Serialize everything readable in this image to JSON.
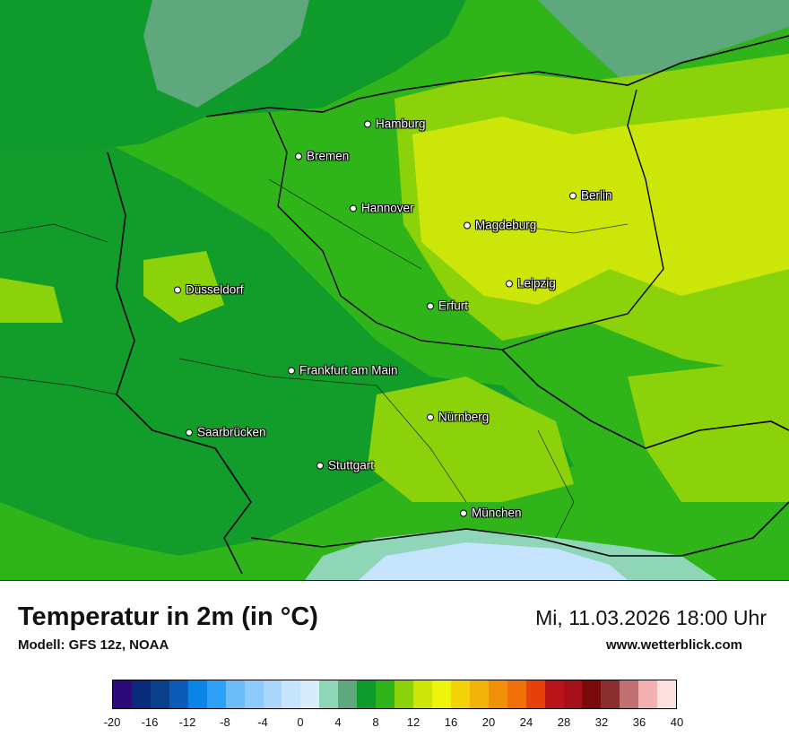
{
  "map": {
    "cities": [
      {
        "name": "Hamburg"
      },
      {
        "name": "Bremen"
      },
      {
        "name": "Hannover"
      },
      {
        "name": "Berlin"
      },
      {
        "name": "Magdeburg"
      },
      {
        "name": "Leipzig"
      },
      {
        "name": "Düsseldorf"
      },
      {
        "name": "Erfurt"
      },
      {
        "name": "Frankfurt am Main"
      },
      {
        "name": "Nürnberg"
      },
      {
        "name": "Saarbrücken"
      },
      {
        "name": "Stuttgart"
      },
      {
        "name": "München"
      }
    ]
  },
  "footer": {
    "title": "Temperatur in 2m (in °C)",
    "model": "Modell: GFS 12z, NOAA",
    "datetime": "Mi, 11.03.2026 18:00 Uhr",
    "website": "www.wetterblick.com"
  },
  "legend": {
    "colors": [
      "#2d0a7a",
      "#0a2b7a",
      "#0a3f8c",
      "#0a5cb8",
      "#0a84e6",
      "#2ea0f7",
      "#6cbcfa",
      "#8ecafb",
      "#a9d6fc",
      "#c6e4fd",
      "#d7ecfd",
      "#8fd6b8",
      "#5fa87e",
      "#0f9a2c",
      "#2fb41a",
      "#8cd20a",
      "#cde60a",
      "#eef50a",
      "#f4d20a",
      "#f3b40a",
      "#f3900a",
      "#f1700a",
      "#e8400a",
      "#b8141a",
      "#a6101a",
      "#7a0a0a",
      "#8a2e30",
      "#c07070",
      "#f2b0b0",
      "#fde0e0"
    ],
    "ticks": [
      "-20",
      "-16",
      "-12",
      "-8",
      "-4",
      "0",
      "4",
      "8",
      "12",
      "16",
      "20",
      "24",
      "28",
      "32",
      "36",
      "40"
    ]
  }
}
